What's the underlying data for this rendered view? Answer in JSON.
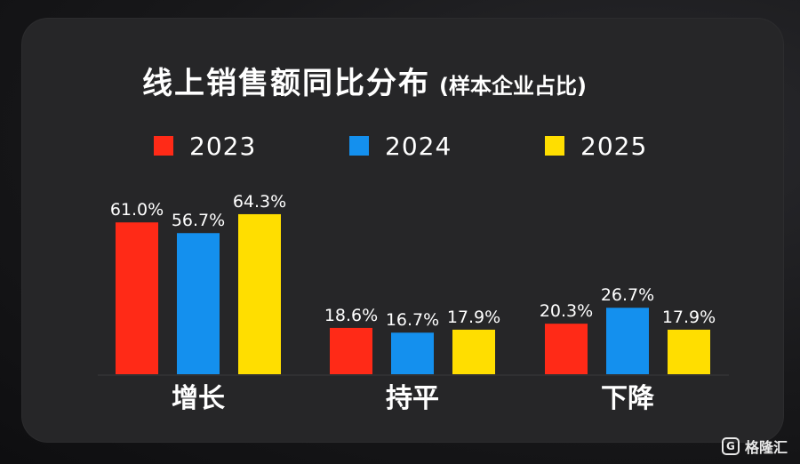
{
  "title": "线上销售额同比分布",
  "subtitle": "(样本企业占比)",
  "watermark": {
    "icon_letter": "G",
    "text": "格隆汇"
  },
  "chart_data": {
    "type": "bar",
    "categories": [
      "增长",
      "持平",
      "下降"
    ],
    "series": [
      {
        "name": "2023",
        "color": "#ff2a17",
        "values": [
          61.0,
          18.6,
          20.3
        ]
      },
      {
        "name": "2024",
        "color": "#1490ee",
        "values": [
          56.7,
          16.7,
          26.7
        ]
      },
      {
        "name": "2025",
        "color": "#ffde00",
        "values": [
          64.3,
          17.9,
          17.9
        ]
      }
    ],
    "value_labels": [
      [
        "61.0%",
        "18.6%",
        "20.3%"
      ],
      [
        "56.7%",
        "16.7%",
        "26.7%"
      ],
      [
        "64.3%",
        "17.9%",
        "17.9%"
      ]
    ],
    "ylim": [
      0,
      100
    ],
    "grid": false,
    "legend_position": "top"
  }
}
